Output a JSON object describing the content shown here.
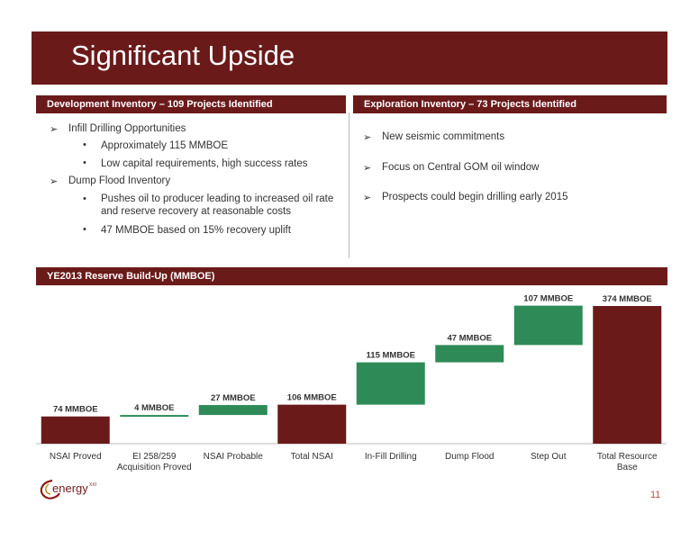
{
  "title": "Significant Upside",
  "dev": {
    "header": "Development Inventory – 109 Projects Identified",
    "items": [
      {
        "level": 1,
        "text": "Infill Drilling Opportunities"
      },
      {
        "level": 2,
        "text": "Approximately 115 MMBOE"
      },
      {
        "level": 2,
        "text": "Low capital requirements, high success rates"
      },
      {
        "level": 1,
        "text": "Dump Flood Inventory"
      },
      {
        "level": 2,
        "text": "Pushes oil to producer leading to increased oil rate"
      },
      {
        "level": 2,
        "text": "and reserve recovery at reasonable costs"
      },
      {
        "level": 2,
        "text": "47 MMBOE based on 15% recovery uplift"
      }
    ]
  },
  "exp": {
    "header": "Exploration Inventory – 73 Projects Identified",
    "items": [
      "New seismic commitments",
      "Focus on Central GOM oil window",
      "Prospects could begin drilling early 2015"
    ]
  },
  "chart_header": "YE2013 Reserve Build-Up (MMBOE)",
  "chart_data": {
    "type": "bar",
    "subtype": "waterfall",
    "ylim": [
      0,
      374
    ],
    "categories": [
      "NSAI Proved",
      "EI 258/259 Acquisition Proved",
      "NSAI Probable",
      "Total NSAI",
      "In-Fill Drilling",
      "Dump Flood",
      "Step Out",
      "Total Resource Base"
    ],
    "category_lines": [
      [
        "NSAI Proved"
      ],
      [
        "EI 258/259",
        "Acquisition Proved"
      ],
      [
        "NSAI Probable"
      ],
      [
        "Total NSAI"
      ],
      [
        "In-Fill Drilling"
      ],
      [
        "Dump Flood"
      ],
      [
        "Step Out"
      ],
      [
        "Total Resource",
        "Base"
      ]
    ],
    "values": [
      74,
      4,
      27,
      106,
      115,
      47,
      107,
      374
    ],
    "kinds": [
      "total",
      "delta",
      "delta",
      "total",
      "delta",
      "delta",
      "delta",
      "total"
    ],
    "labels": [
      "74 MMBOE",
      "4 MMBOE",
      "27 MMBOE",
      "106 MMBOE",
      "115 MMBOE",
      "47 MMBOE",
      "107 MMBOE",
      "374 MMBOE"
    ],
    "colors": {
      "total": "#6b1a1a",
      "delta": "#2e8b57"
    }
  },
  "logo_text": "energy",
  "logo_super": "XXI",
  "page_number": "11",
  "icons": {
    "bullet_l1": "arrow-bullet-icon",
    "bullet_l2": "dot-bullet-icon",
    "logo": "energy-xxi-logo-icon"
  }
}
